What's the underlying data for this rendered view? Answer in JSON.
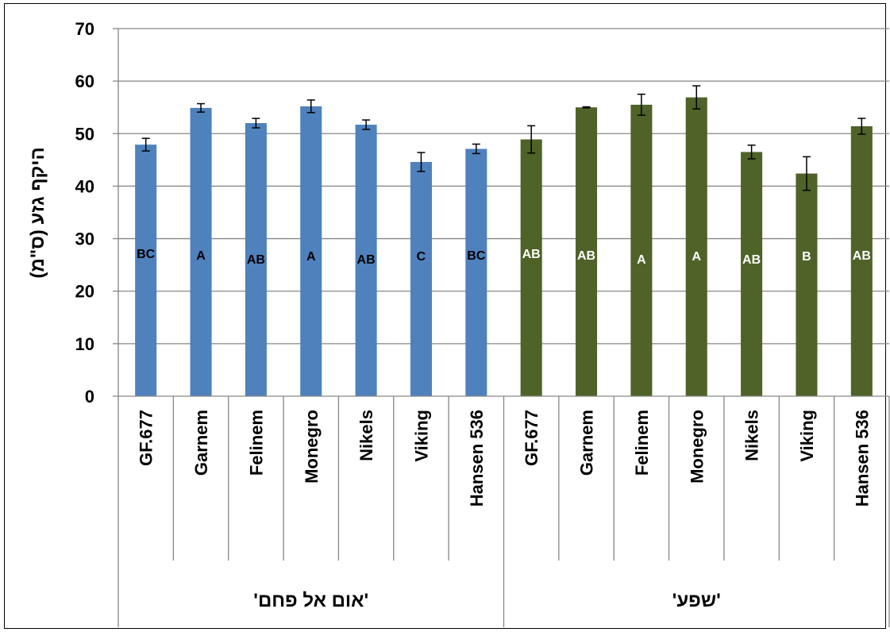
{
  "chart_data": {
    "type": "bar",
    "title": "",
    "ylabel": "היקף גזע (ס\"מ)",
    "xlabel": "",
    "ylim": [
      0,
      70
    ],
    "yticks": [
      0,
      10,
      20,
      30,
      40,
      50,
      60,
      70
    ],
    "grid": true,
    "legend": "none",
    "categories": [
      "GF.677",
      "Garnem",
      "Felinem",
      "Monegro",
      "Nikels",
      "Viking",
      "Hansen 536"
    ],
    "colors": {
      "group1": "#4F81BD",
      "group2": "#4F6228",
      "labels_group1": "#000000",
      "labels_group2": "#FFFFFF"
    },
    "groups": [
      {
        "label": "'אום אל פחם'",
        "values": [
          47.9,
          54.9,
          52.0,
          55.2,
          51.7,
          44.6,
          47.1
        ],
        "errors": [
          1.2,
          0.8,
          0.9,
          1.2,
          0.9,
          1.8,
          0.9
        ],
        "letters": [
          "BC",
          "A",
          "AB",
          "A",
          "AB",
          "C",
          "BC"
        ]
      },
      {
        "label": "'שפע'",
        "values": [
          48.9,
          55.0,
          55.5,
          56.9,
          46.5,
          42.4,
          51.4
        ],
        "errors": [
          2.6,
          0.1,
          2.0,
          2.2,
          1.3,
          3.2,
          1.5
        ],
        "letters": [
          "AB",
          "AB",
          "A",
          "A",
          "AB",
          "B",
          "AB"
        ]
      }
    ]
  }
}
